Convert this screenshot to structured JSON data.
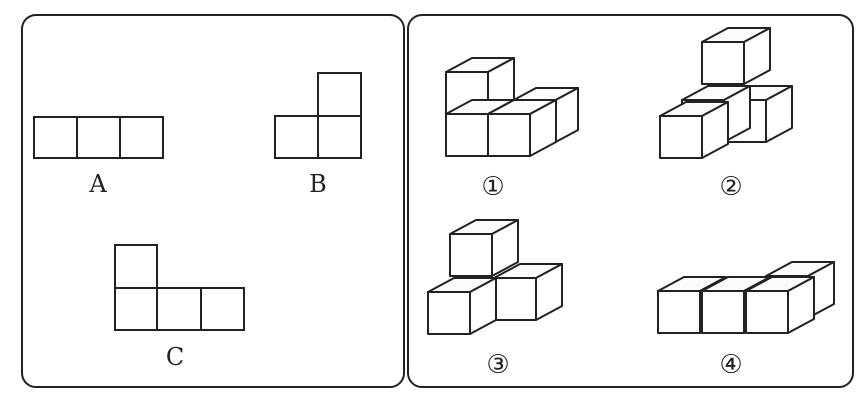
{
  "left_panel": {
    "shapes": [
      {
        "label": "A"
      },
      {
        "label": "B"
      },
      {
        "label": "C"
      }
    ]
  },
  "right_panel": {
    "figures": [
      {
        "label": "①"
      },
      {
        "label": "②"
      },
      {
        "label": "③"
      },
      {
        "label": "④"
      }
    ]
  }
}
